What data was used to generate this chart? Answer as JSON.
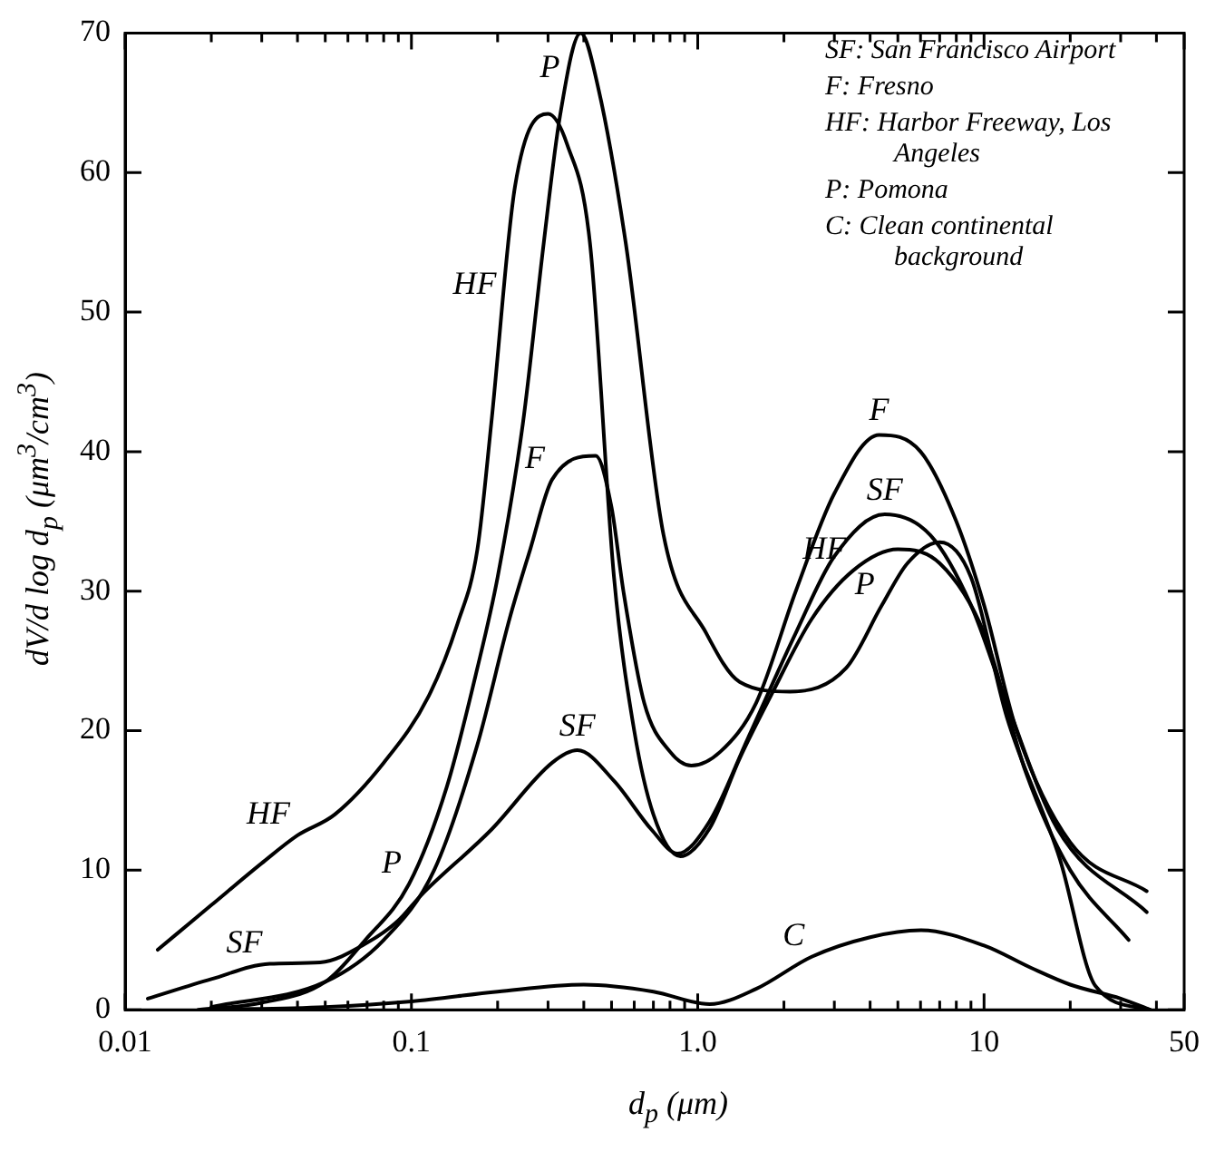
{
  "chart_data": {
    "type": "line",
    "xlabel": "d$_{p}$ (μm)",
    "ylabel": "dV/d log d$_{p}$ (μm$^{3}$/cm$^{3}$)",
    "log": "x",
    "marker": "none",
    "xlim": [
      0.01,
      50
    ],
    "ylim": [
      0,
      70
    ],
    "xticks": [
      0.01,
      {
        "value": 0.02,
        "label": null
      },
      {
        "value": 0.03,
        "label": null
      },
      {
        "value": 0.04,
        "label": null
      },
      {
        "value": 0.05,
        "label": null
      },
      {
        "value": 0.06,
        "label": null
      },
      {
        "value": 0.07,
        "label": null
      },
      {
        "value": 0.08,
        "label": null
      },
      {
        "value": 0.09,
        "label": null
      },
      0.1,
      {
        "value": 0.2,
        "label": null
      },
      {
        "value": 0.3,
        "label": null
      },
      {
        "value": 0.4,
        "label": null
      },
      {
        "value": 0.5,
        "label": null
      },
      {
        "value": 0.6,
        "label": null
      },
      {
        "value": 0.7,
        "label": null
      },
      {
        "value": 0.8,
        "label": null
      },
      {
        "value": 0.9,
        "label": null
      },
      {
        "value": 1,
        "label": "1.0"
      },
      {
        "value": 2,
        "label": null
      },
      {
        "value": 3,
        "label": null
      },
      {
        "value": 4,
        "label": null
      },
      {
        "value": 5,
        "label": null
      },
      {
        "value": 6,
        "label": null
      },
      {
        "value": 7,
        "label": null
      },
      {
        "value": 8,
        "label": null
      },
      {
        "value": 9,
        "label": null
      },
      10,
      {
        "value": 20,
        "label": null
      },
      {
        "value": 30,
        "label": null
      },
      {
        "value": 40,
        "label": null
      },
      50
    ],
    "yticks": [
      0,
      10,
      20,
      30,
      40,
      50,
      60,
      70
    ],
    "series": [
      {
        "color": "#000000",
        "x": [
          0.013,
          0.02,
          0.03,
          0.04,
          0.054,
          0.08,
          0.115,
          0.145,
          0.17,
          0.19,
          0.23,
          0.3,
          0.35,
          0.42,
          0.51,
          0.6,
          0.7,
          0.87,
          1.1,
          1.4,
          1.8,
          2.5,
          3.5,
          5,
          7,
          10,
          14,
          20,
          32
        ],
        "values": [
          4.3,
          7.5,
          10.5,
          12.5,
          14,
          17.7,
          22.5,
          27.7,
          33,
          42,
          59,
          64.2,
          62,
          55,
          31,
          20,
          14,
          11,
          13,
          18,
          22.5,
          28,
          31.5,
          33,
          32,
          27,
          17,
          10,
          5
        ]
      },
      {
        "color": "#000000",
        "x": [
          0.018,
          0.03,
          0.05,
          0.069,
          0.098,
          0.133,
          0.17,
          0.2,
          0.245,
          0.29,
          0.33,
          0.39,
          0.45,
          0.56,
          0.76,
          1.07,
          1.4,
          2.1,
          3.3,
          4.4,
          5.4,
          7,
          9,
          12,
          18.4,
          24.5,
          38
        ],
        "values": [
          0,
          0.5,
          2,
          5,
          9,
          16,
          24.5,
          31,
          42,
          55,
          64,
          70,
          66,
          55,
          34,
          27,
          23.5,
          22.8,
          24.5,
          29,
          32,
          33.5,
          31,
          21,
          10.8,
          1.7,
          0
        ]
      },
      {
        "color": "#000000",
        "x": [
          0.02,
          0.05,
          0.08,
          0.12,
          0.17,
          0.22,
          0.26,
          0.31,
          0.44,
          0.5,
          0.55,
          0.65,
          0.8,
          0.95,
          1.2,
          1.6,
          2.2,
          3,
          4.3,
          6,
          8,
          10,
          13,
          20,
          37
        ],
        "values": [
          0.2,
          2,
          5,
          10,
          19,
          28,
          33,
          38,
          39.7,
          36,
          30,
          22,
          18.5,
          17.5,
          18.5,
          22,
          30,
          37,
          41.2,
          40,
          35,
          29,
          20,
          12,
          8.5
        ]
      },
      {
        "color": "#000000",
        "x": [
          0.012,
          0.02,
          0.032,
          0.048,
          0.07,
          0.09,
          0.108,
          0.19,
          0.31,
          0.38,
          0.51,
          0.69,
          0.85,
          1.1,
          1.5,
          2.2,
          3,
          4.5,
          6.5,
          9,
          12,
          18,
          37
        ],
        "values": [
          0.8,
          2.2,
          3.3,
          3.4,
          4.8,
          6.4,
          8.2,
          12.9,
          17.7,
          18.6,
          16.4,
          12.9,
          11.2,
          13.5,
          19.5,
          27,
          32.5,
          35.5,
          34,
          29,
          22,
          13,
          7
        ]
      },
      {
        "color": "#000000",
        "x": [
          0.02,
          0.05,
          0.1,
          0.2,
          0.4,
          0.7,
          1.1,
          1.6,
          2.5,
          4,
          6,
          10,
          14.6,
          20,
          30,
          38
        ],
        "values": [
          0,
          0.2,
          0.6,
          1.3,
          1.8,
          1.3,
          0.4,
          1.5,
          3.8,
          5.2,
          5.7,
          4.6,
          3,
          1.8,
          0.8,
          0
        ]
      }
    ],
    "annotations": [
      "SF: San Francisco Airport",
      "F: Fresno",
      "HF: Harbor Freeway, Los Angeles",
      "P: Pomona",
      "C: Clean continental background",
      {
        "text": "P",
        "x": 0.35,
        "y": 66
      },
      {
        "text": "HF",
        "x": 0.21,
        "y": 50.5
      },
      {
        "text": "F",
        "x": 0.31,
        "y": 38
      },
      {
        "text": "SF",
        "x": 0.38,
        "y": 18.6
      },
      {
        "text": "HF",
        "x": 0.04,
        "y": 12.5
      },
      {
        "text": "P",
        "x": 0.098,
        "y": 9
      },
      {
        "text": "SF",
        "x": 0.032,
        "y": 3.3
      },
      {
        "text": "F",
        "x": 4.3,
        "y": 41.2
      },
      {
        "text": "SF",
        "x": 4.5,
        "y": 35.5
      },
      {
        "text": "HF",
        "x": 3.5,
        "y": 31.5
      },
      {
        "text": "P",
        "x": 4.4,
        "y": 29
      },
      {
        "text": "C",
        "x": 2.5,
        "y": 3.8
      }
    ]
  }
}
